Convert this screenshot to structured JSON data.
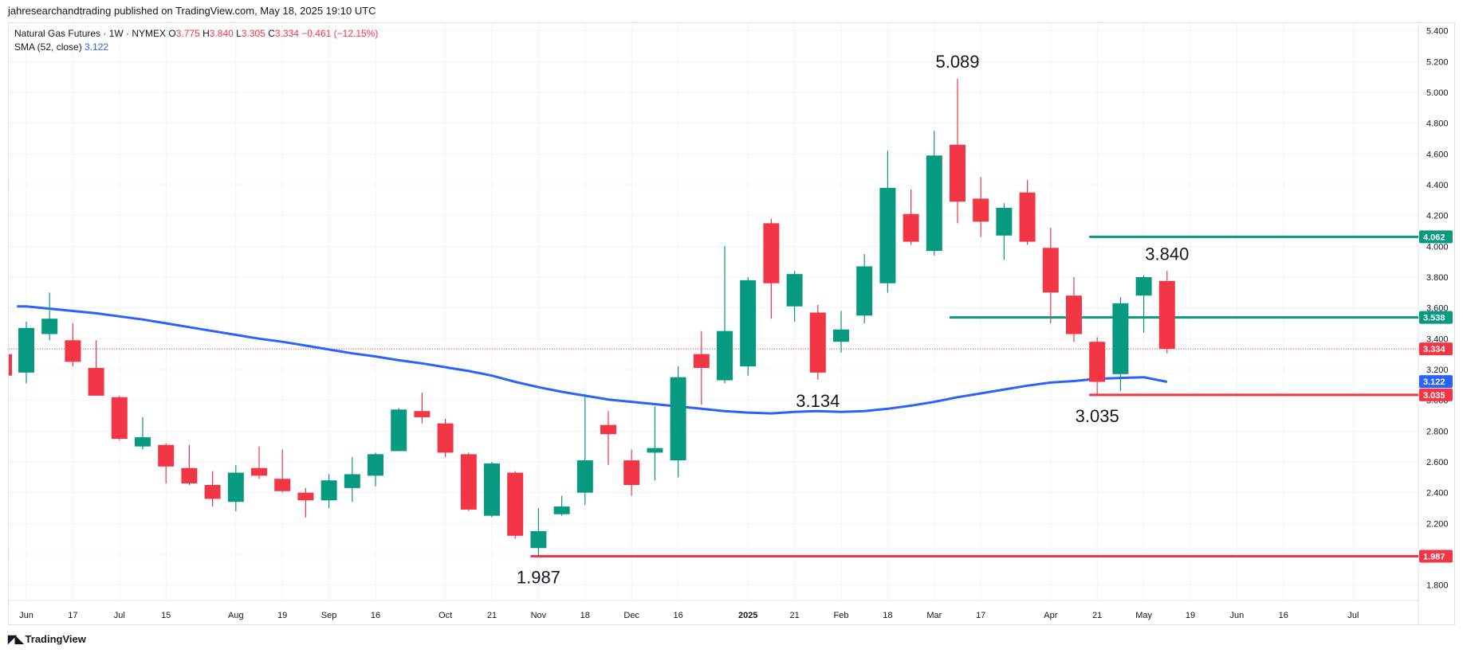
{
  "header": {
    "publish_line": "jahresearchandtrading published on TradingView.com, May 18, 2025 19:10 UTC"
  },
  "legend": {
    "symbol": "Natural Gas Futures · 1W · NYMEX",
    "o_label": "O",
    "o_value": "3.775",
    "h_label": "H",
    "h_value": "3.840",
    "l_label": "L",
    "l_value": "3.305",
    "c_label": "C",
    "c_value": "3.334",
    "change": "−0.461 (−12.15%)",
    "sma_label": "SMA (52, close)",
    "sma_value": "3.122"
  },
  "footer": {
    "brand": "TradingView",
    "icon": "tradingview-logo-icon"
  },
  "colors": {
    "up": "#089981",
    "down": "#f23645",
    "sma": "#2962ff",
    "hline_green": "#089981",
    "hline_red": "#f23645",
    "grid": "#f0f3fa",
    "text": "#131722"
  },
  "chart_data": {
    "type": "candlestick",
    "y_range": [
      1.7,
      5.45
    ],
    "y_ticks": [
      "1.800",
      "2.000",
      "2.200",
      "2.400",
      "2.600",
      "2.800",
      "3.000",
      "3.200",
      "3.400",
      "3.600",
      "3.800",
      "4.000",
      "4.200",
      "4.400",
      "4.600",
      "4.800",
      "5.000",
      "5.200",
      "5.400"
    ],
    "x_ticks": [
      {
        "label": "Jun",
        "bar": 0
      },
      {
        "label": "17",
        "bar": 2
      },
      {
        "label": "Jul",
        "bar": 4
      },
      {
        "label": "15",
        "bar": 6
      },
      {
        "label": "Aug",
        "bar": 9
      },
      {
        "label": "19",
        "bar": 11
      },
      {
        "label": "Sep",
        "bar": 13
      },
      {
        "label": "16",
        "bar": 15
      },
      {
        "label": "Oct",
        "bar": 18
      },
      {
        "label": "21",
        "bar": 20
      },
      {
        "label": "Nov",
        "bar": 22
      },
      {
        "label": "18",
        "bar": 24
      },
      {
        "label": "Dec",
        "bar": 26
      },
      {
        "label": "16",
        "bar": 28
      },
      {
        "label": "2025",
        "bar": 31,
        "bold": true
      },
      {
        "label": "21",
        "bar": 33
      },
      {
        "label": "Feb",
        "bar": 35
      },
      {
        "label": "18",
        "bar": 37
      },
      {
        "label": "Mar",
        "bar": 39
      },
      {
        "label": "17",
        "bar": 41
      },
      {
        "label": "Apr",
        "bar": 44
      },
      {
        "label": "21",
        "bar": 46
      },
      {
        "label": "May",
        "bar": 48
      },
      {
        "label": "19",
        "bar": 50
      },
      {
        "label": "Jun",
        "bar": 52
      },
      {
        "label": "16",
        "bar": 54
      },
      {
        "label": "Jul",
        "bar": 57
      }
    ],
    "candles": [
      {
        "o": 3.18,
        "h": 3.51,
        "l": 3.11,
        "c": 3.47
      },
      {
        "o": 3.43,
        "h": 3.7,
        "l": 3.39,
        "c": 3.53
      },
      {
        "o": 3.39,
        "h": 3.5,
        "l": 3.22,
        "c": 3.25
      },
      {
        "o": 3.21,
        "h": 3.39,
        "l": 3.03,
        "c": 3.03
      },
      {
        "o": 3.02,
        "h": 3.03,
        "l": 2.74,
        "c": 2.75
      },
      {
        "o": 2.7,
        "h": 2.89,
        "l": 2.68,
        "c": 2.76
      },
      {
        "o": 2.71,
        "h": 2.72,
        "l": 2.46,
        "c": 2.57
      },
      {
        "o": 2.56,
        "h": 2.71,
        "l": 2.45,
        "c": 2.46
      },
      {
        "o": 2.45,
        "h": 2.54,
        "l": 2.31,
        "c": 2.36
      },
      {
        "o": 2.34,
        "h": 2.58,
        "l": 2.28,
        "c": 2.53
      },
      {
        "o": 2.56,
        "h": 2.7,
        "l": 2.49,
        "c": 2.51
      },
      {
        "o": 2.49,
        "h": 2.68,
        "l": 2.4,
        "c": 2.41
      },
      {
        "o": 2.4,
        "h": 2.43,
        "l": 2.24,
        "c": 2.35
      },
      {
        "o": 2.35,
        "h": 2.52,
        "l": 2.3,
        "c": 2.48
      },
      {
        "o": 2.43,
        "h": 2.63,
        "l": 2.34,
        "c": 2.52
      },
      {
        "o": 2.51,
        "h": 2.66,
        "l": 2.44,
        "c": 2.65
      },
      {
        "o": 2.67,
        "h": 2.95,
        "l": 2.67,
        "c": 2.94
      },
      {
        "o": 2.93,
        "h": 3.05,
        "l": 2.85,
        "c": 2.89
      },
      {
        "o": 2.85,
        "h": 2.88,
        "l": 2.63,
        "c": 2.66
      },
      {
        "o": 2.65,
        "h": 2.66,
        "l": 2.28,
        "c": 2.29
      },
      {
        "o": 2.25,
        "h": 2.6,
        "l": 2.24,
        "c": 2.59
      },
      {
        "o": 2.53,
        "h": 2.54,
        "l": 2.1,
        "c": 2.12
      },
      {
        "o": 2.04,
        "h": 2.3,
        "l": 1.987,
        "c": 2.15
      },
      {
        "o": 2.26,
        "h": 2.38,
        "l": 2.25,
        "c": 2.31
      },
      {
        "o": 2.4,
        "h": 3.04,
        "l": 2.32,
        "c": 2.61
      },
      {
        "o": 2.84,
        "h": 2.93,
        "l": 2.58,
        "c": 2.78
      },
      {
        "o": 2.61,
        "h": 2.68,
        "l": 2.38,
        "c": 2.45
      },
      {
        "o": 2.66,
        "h": 2.96,
        "l": 2.48,
        "c": 2.69
      },
      {
        "o": 2.61,
        "h": 3.22,
        "l": 2.5,
        "c": 3.15
      },
      {
        "o": 3.3,
        "h": 3.45,
        "l": 2.97,
        "c": 3.21
      },
      {
        "o": 3.13,
        "h": 4.0,
        "l": 3.11,
        "c": 3.45
      },
      {
        "o": 3.22,
        "h": 3.8,
        "l": 3.16,
        "c": 3.78
      },
      {
        "o": 4.15,
        "h": 4.18,
        "l": 3.53,
        "c": 3.76
      },
      {
        "o": 3.61,
        "h": 3.84,
        "l": 3.51,
        "c": 3.82
      },
      {
        "o": 3.57,
        "h": 3.62,
        "l": 3.134,
        "c": 3.18
      },
      {
        "o": 3.38,
        "h": 3.58,
        "l": 3.31,
        "c": 3.46
      },
      {
        "o": 3.55,
        "h": 3.95,
        "l": 3.5,
        "c": 3.87
      },
      {
        "o": 3.76,
        "h": 4.62,
        "l": 3.7,
        "c": 4.38
      },
      {
        "o": 4.21,
        "h": 4.37,
        "l": 4.01,
        "c": 4.03
      },
      {
        "o": 3.97,
        "h": 4.75,
        "l": 3.94,
        "c": 4.59
      },
      {
        "o": 4.66,
        "h": 5.089,
        "l": 4.15,
        "c": 4.29
      },
      {
        "o": 4.31,
        "h": 4.45,
        "l": 4.06,
        "c": 4.16
      },
      {
        "o": 4.07,
        "h": 4.28,
        "l": 3.91,
        "c": 4.25
      },
      {
        "o": 4.35,
        "h": 4.43,
        "l": 4.01,
        "c": 4.03
      },
      {
        "o": 3.99,
        "h": 4.12,
        "l": 3.5,
        "c": 3.7
      },
      {
        "o": 3.68,
        "h": 3.8,
        "l": 3.38,
        "c": 3.43
      },
      {
        "o": 3.38,
        "h": 3.41,
        "l": 3.035,
        "c": 3.12
      },
      {
        "o": 3.17,
        "h": 3.67,
        "l": 3.06,
        "c": 3.63
      },
      {
        "o": 3.68,
        "h": 3.81,
        "l": 3.44,
        "c": 3.8
      },
      {
        "o": 3.775,
        "h": 3.84,
        "l": 3.305,
        "c": 3.334
      }
    ],
    "sma": [
      [
        -0.4,
        3.61
      ],
      [
        0,
        3.61
      ],
      [
        1,
        3.595
      ],
      [
        2,
        3.58
      ],
      [
        3,
        3.565
      ],
      [
        4,
        3.545
      ],
      [
        5,
        3.525
      ],
      [
        6,
        3.5
      ],
      [
        7,
        3.475
      ],
      [
        8,
        3.45
      ],
      [
        9,
        3.425
      ],
      [
        10,
        3.4
      ],
      [
        11,
        3.38
      ],
      [
        12,
        3.355
      ],
      [
        13,
        3.33
      ],
      [
        14,
        3.305
      ],
      [
        15,
        3.285
      ],
      [
        16,
        3.26
      ],
      [
        17,
        3.24
      ],
      [
        18,
        3.215
      ],
      [
        19,
        3.19
      ],
      [
        20,
        3.16
      ],
      [
        21,
        3.12
      ],
      [
        22,
        3.085
      ],
      [
        23,
        3.055
      ],
      [
        24,
        3.03
      ],
      [
        25,
        3.005
      ],
      [
        26,
        2.99
      ],
      [
        27,
        2.975
      ],
      [
        28,
        2.96
      ],
      [
        29,
        2.945
      ],
      [
        30,
        2.93
      ],
      [
        31,
        2.92
      ],
      [
        32,
        2.915
      ],
      [
        33,
        2.925
      ],
      [
        34,
        2.93
      ],
      [
        35,
        2.925
      ],
      [
        36,
        2.93
      ],
      [
        37,
        2.945
      ],
      [
        38,
        2.965
      ],
      [
        39,
        2.99
      ],
      [
        40,
        3.02
      ],
      [
        41,
        3.045
      ],
      [
        42,
        3.07
      ],
      [
        43,
        3.095
      ],
      [
        44,
        3.115
      ],
      [
        45,
        3.125
      ],
      [
        46,
        3.14
      ],
      [
        47,
        3.145
      ],
      [
        48,
        3.15
      ],
      [
        49,
        3.12
      ]
    ],
    "hlines": [
      {
        "value": 4.062,
        "label": "4.062",
        "color": "#089981",
        "start_bar": 46
      },
      {
        "value": 3.538,
        "label": "3.538",
        "color": "#089981",
        "start_bar": 40
      },
      {
        "value": 3.035,
        "label": "3.035",
        "color": "#f23645",
        "start_bar": 46
      },
      {
        "value": 1.987,
        "label": "1.987",
        "color": "#f23645",
        "start_bar": 22
      }
    ],
    "price_tags": [
      {
        "value": 3.334,
        "label": "3.334",
        "color": "#f23645"
      },
      {
        "value": 3.122,
        "label": "3.122",
        "color": "#2962ff"
      }
    ],
    "last_price": {
      "value": 3.334,
      "color": "#f23645"
    },
    "annotations": [
      {
        "text": "5.089",
        "bar": 40,
        "value": 5.089,
        "pos": "above"
      },
      {
        "text": "3.840",
        "bar": 49,
        "value": 3.84,
        "pos": "above"
      },
      {
        "text": "3.134",
        "bar": 34,
        "value": 3.134,
        "pos": "below"
      },
      {
        "text": "3.035",
        "bar": 46,
        "value": 3.035,
        "pos": "below"
      },
      {
        "text": "1.987",
        "bar": 22,
        "value": 1.987,
        "pos": "below"
      }
    ]
  }
}
